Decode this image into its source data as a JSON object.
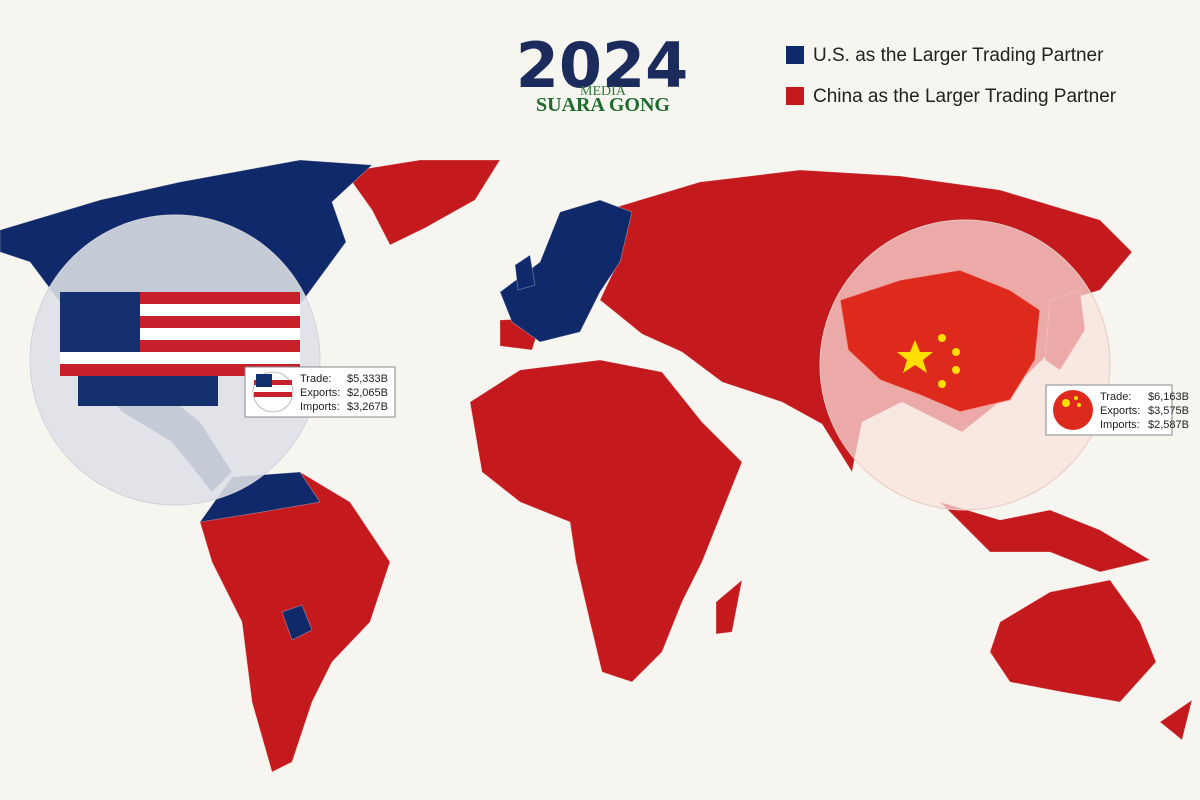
{
  "title": "2024",
  "watermark": {
    "line1": "MEDIA",
    "line2": "SUARA GONG"
  },
  "legend": [
    {
      "label": "U.S. as the Larger Trading Partner",
      "color": "#10296a"
    },
    {
      "label": "China as the Larger Trading Partner",
      "color": "#c41a1d"
    }
  ],
  "us_box": {
    "rows": [
      {
        "label": "Trade:",
        "value": "$5,333B"
      },
      {
        "label": "Exports:",
        "value": "$2,065B"
      },
      {
        "label": "Imports:",
        "value": "$3,267B"
      }
    ]
  },
  "china_box": {
    "rows": [
      {
        "label": "Trade:",
        "value": "$6,163B"
      },
      {
        "label": "Exports:",
        "value": "$3,575B"
      },
      {
        "label": "Imports:",
        "value": "$2,587B"
      }
    ]
  }
}
